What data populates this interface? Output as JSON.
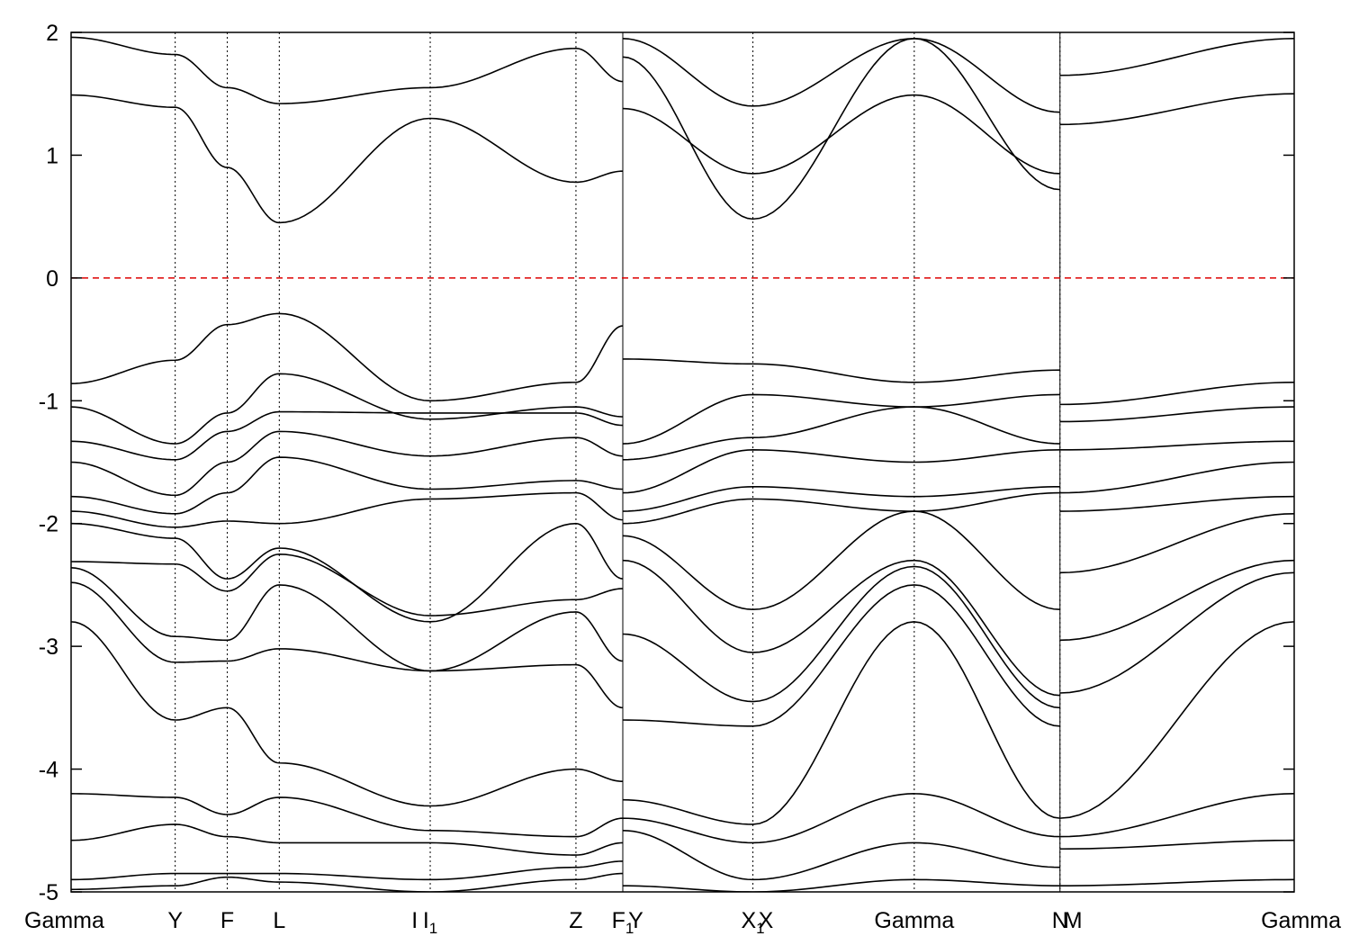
{
  "chart_data": {
    "type": "line",
    "title": "",
    "xlabel": "",
    "ylabel": "",
    "ylim": [
      -5,
      2
    ],
    "y_ticks": [
      -5,
      -4,
      -3,
      -2,
      -1,
      0,
      1,
      2
    ],
    "xlim": [
      0,
      23.5
    ],
    "kpoints": [
      {
        "x": 0.0,
        "label": "Gamma",
        "sub": ""
      },
      {
        "x": 2.0,
        "label": "Y",
        "sub": ""
      },
      {
        "x": 3.0,
        "label": "F",
        "sub": ""
      },
      {
        "x": 4.0,
        "label": "L",
        "sub": ""
      },
      {
        "x": 6.6,
        "label": "I",
        "sub": ""
      },
      {
        "x": 6.9,
        "label": "I",
        "sub": "1"
      },
      {
        "x": 9.7,
        "label": "Z",
        "sub": ""
      },
      {
        "x": 10.6,
        "label": "F",
        "sub": "1"
      },
      {
        "x": 10.85,
        "label": "Y",
        "sub": ""
      },
      {
        "x": 13.1,
        "label": "X",
        "sub": "1"
      },
      {
        "x": 13.35,
        "label": "X",
        "sub": ""
      },
      {
        "x": 16.2,
        "label": "Gamma",
        "sub": ""
      },
      {
        "x": 19.0,
        "label": "N",
        "sub": ""
      },
      {
        "x": 19.25,
        "label": "M",
        "sub": ""
      },
      {
        "x": 23.5,
        "label": "Gamma",
        "sub": ""
      }
    ],
    "vlines_x": [
      2.0,
      3.0,
      4.0,
      6.9,
      9.7,
      13.1,
      16.2,
      19.0
    ],
    "segment_breaks_x": [
      10.6,
      19.0
    ],
    "fermi_level": 0,
    "colors": {
      "bands": "#000000",
      "fermi": "#dd0000",
      "grid": "#000000"
    },
    "series": [
      {
        "x": [
          0,
          2,
          3,
          4,
          6.9,
          9.7,
          10.6
        ],
        "y": [
          1.96,
          1.82,
          1.55,
          1.42,
          1.55,
          1.87,
          1.6
        ]
      },
      {
        "x": [
          0,
          2,
          3,
          4,
          6.9,
          9.7,
          10.6
        ],
        "y": [
          1.49,
          1.39,
          0.9,
          0.45,
          1.3,
          0.78,
          0.87
        ]
      },
      {
        "x": [
          0,
          2,
          3,
          4,
          6.9,
          9.7,
          10.6
        ],
        "y": [
          -0.86,
          -0.67,
          -0.38,
          -0.29,
          -1.0,
          -0.85,
          -0.39
        ]
      },
      {
        "x": [
          0,
          2,
          3,
          4,
          6.9,
          9.7,
          10.6
        ],
        "y": [
          -1.05,
          -1.35,
          -1.1,
          -0.78,
          -1.15,
          -1.05,
          -1.13
        ]
      },
      {
        "x": [
          0,
          2,
          3,
          4,
          6.9,
          9.7,
          10.6
        ],
        "y": [
          -1.33,
          -1.48,
          -1.25,
          -1.09,
          -1.1,
          -1.1,
          -1.2
        ]
      },
      {
        "x": [
          0,
          2,
          3,
          4,
          6.9,
          9.7,
          10.6
        ],
        "y": [
          -1.5,
          -1.77,
          -1.5,
          -1.25,
          -1.45,
          -1.3,
          -1.45
        ]
      },
      {
        "x": [
          0,
          2,
          3,
          4,
          6.9,
          9.7,
          10.6
        ],
        "y": [
          -1.78,
          -1.92,
          -1.75,
          -1.46,
          -1.72,
          -1.65,
          -1.72
        ]
      },
      {
        "x": [
          0,
          2,
          3,
          4,
          6.9,
          9.7,
          10.6
        ],
        "y": [
          -1.9,
          -2.03,
          -1.98,
          -2.0,
          -1.8,
          -1.75,
          -1.97
        ]
      },
      {
        "x": [
          0,
          2,
          3,
          4,
          6.9,
          9.7,
          10.6
        ],
        "y": [
          -2.0,
          -2.12,
          -2.45,
          -2.2,
          -2.8,
          -2.0,
          -2.45
        ]
      },
      {
        "x": [
          0,
          2,
          3,
          4,
          6.9,
          9.7,
          10.6
        ],
        "y": [
          -2.31,
          -2.33,
          -2.55,
          -2.25,
          -2.75,
          -2.62,
          -2.53
        ]
      },
      {
        "x": [
          0,
          2,
          3,
          4,
          6.9,
          9.7,
          10.6
        ],
        "y": [
          -2.36,
          -2.92,
          -2.95,
          -2.5,
          -3.2,
          -2.72,
          -3.12
        ]
      },
      {
        "x": [
          0,
          2,
          3,
          4,
          6.9,
          9.7,
          10.6
        ],
        "y": [
          -2.48,
          -3.13,
          -3.12,
          -3.02,
          -3.2,
          -3.15,
          -3.5
        ]
      },
      {
        "x": [
          0,
          2,
          3,
          4,
          6.9,
          9.7,
          10.6
        ],
        "y": [
          -2.8,
          -3.6,
          -3.5,
          -3.95,
          -4.3,
          -4.0,
          -4.1
        ]
      },
      {
        "x": [
          0,
          2,
          3,
          4,
          6.9,
          9.7,
          10.6
        ],
        "y": [
          -4.2,
          -4.23,
          -4.37,
          -4.23,
          -4.5,
          -4.55,
          -4.4
        ]
      },
      {
        "x": [
          0,
          2,
          3,
          4,
          6.9,
          9.7,
          10.6
        ],
        "y": [
          -4.58,
          -4.45,
          -4.55,
          -4.6,
          -4.6,
          -4.7,
          -4.6
        ]
      },
      {
        "x": [
          0,
          2,
          3,
          4,
          6.9,
          9.7,
          10.6
        ],
        "y": [
          -4.9,
          -4.85,
          -4.85,
          -4.85,
          -4.9,
          -4.8,
          -4.75
        ]
      },
      {
        "x": [
          0,
          2,
          3,
          4,
          6.9,
          9.7,
          10.6
        ],
        "y": [
          -4.98,
          -4.95,
          -4.88,
          -4.92,
          -5.0,
          -4.9,
          -4.85
        ]
      },
      {
        "x": [
          10.6,
          13.1,
          16.2,
          19.0
        ],
        "y": [
          1.8,
          0.48,
          1.95,
          0.72
        ]
      },
      {
        "x": [
          10.6,
          13.1,
          16.2,
          19.0
        ],
        "y": [
          1.38,
          0.85,
          1.49,
          0.85
        ]
      },
      {
        "x": [
          10.6,
          13.1,
          16.2,
          19.0
        ],
        "y": [
          1.95,
          1.4,
          1.95,
          1.35
        ]
      },
      {
        "x": [
          10.6,
          13.1,
          16.2,
          19.0
        ],
        "y": [
          -0.66,
          -0.7,
          -0.85,
          -0.75
        ]
      },
      {
        "x": [
          10.6,
          13.1,
          16.2,
          19.0
        ],
        "y": [
          -1.35,
          -0.95,
          -1.05,
          -0.95
        ]
      },
      {
        "x": [
          10.6,
          13.1,
          16.2,
          19.0
        ],
        "y": [
          -1.48,
          -1.3,
          -1.05,
          -1.35
        ]
      },
      {
        "x": [
          10.6,
          13.1,
          16.2,
          19.0
        ],
        "y": [
          -1.75,
          -1.4,
          -1.5,
          -1.4
        ]
      },
      {
        "x": [
          10.6,
          13.1,
          16.2,
          19.0
        ],
        "y": [
          -1.9,
          -1.7,
          -1.78,
          -1.7
        ]
      },
      {
        "x": [
          10.6,
          13.1,
          16.2,
          19.0
        ],
        "y": [
          -2.0,
          -1.8,
          -1.9,
          -1.75
        ]
      },
      {
        "x": [
          10.6,
          13.1,
          16.2,
          19.0
        ],
        "y": [
          -2.1,
          -2.7,
          -1.9,
          -2.7
        ]
      },
      {
        "x": [
          10.6,
          13.1,
          16.2,
          19.0
        ],
        "y": [
          -2.3,
          -3.05,
          -2.3,
          -3.4
        ]
      },
      {
        "x": [
          10.6,
          13.1,
          16.2,
          19.0
        ],
        "y": [
          -2.9,
          -3.45,
          -2.35,
          -3.5
        ]
      },
      {
        "x": [
          10.6,
          13.1,
          16.2,
          19.0
        ],
        "y": [
          -3.6,
          -3.65,
          -2.5,
          -3.65
        ]
      },
      {
        "x": [
          10.6,
          13.1,
          16.2,
          19.0
        ],
        "y": [
          -4.25,
          -4.45,
          -2.8,
          -4.4
        ]
      },
      {
        "x": [
          10.6,
          13.1,
          16.2,
          19.0
        ],
        "y": [
          -4.4,
          -4.6,
          -4.2,
          -4.55
        ]
      },
      {
        "x": [
          10.6,
          13.1,
          16.2,
          19.0
        ],
        "y": [
          -4.5,
          -4.9,
          -4.6,
          -4.8
        ]
      },
      {
        "x": [
          10.6,
          13.1,
          16.2,
          19.0
        ],
        "y": [
          -4.95,
          -5.0,
          -4.9,
          -4.95
        ]
      },
      {
        "x": [
          19.0,
          23.5
        ],
        "y": [
          1.25,
          1.5
        ]
      },
      {
        "x": [
          19.0,
          23.5
        ],
        "y": [
          1.65,
          1.95
        ]
      },
      {
        "x": [
          19.0,
          23.5
        ],
        "y": [
          -1.03,
          -0.85
        ]
      },
      {
        "x": [
          19.0,
          23.5
        ],
        "y": [
          -1.17,
          -1.05
        ]
      },
      {
        "x": [
          19.0,
          23.5
        ],
        "y": [
          -1.4,
          -1.33
        ]
      },
      {
        "x": [
          19.0,
          23.5
        ],
        "y": [
          -1.75,
          -1.5
        ]
      },
      {
        "x": [
          19.0,
          23.5
        ],
        "y": [
          -1.9,
          -1.78
        ]
      },
      {
        "x": [
          19.0,
          23.5
        ],
        "y": [
          -2.4,
          -1.92
        ]
      },
      {
        "x": [
          19.0,
          23.5
        ],
        "y": [
          -2.95,
          -2.3
        ]
      },
      {
        "x": [
          19.0,
          23.5
        ],
        "y": [
          -3.38,
          -2.4
        ]
      },
      {
        "x": [
          19.0,
          23.5
        ],
        "y": [
          -4.4,
          -2.8
        ]
      },
      {
        "x": [
          19.0,
          23.5
        ],
        "y": [
          -4.55,
          -4.2
        ]
      },
      {
        "x": [
          19.0,
          23.5
        ],
        "y": [
          -4.65,
          -4.58
        ]
      },
      {
        "x": [
          19.0,
          23.5
        ],
        "y": [
          -4.95,
          -4.9
        ]
      }
    ]
  }
}
